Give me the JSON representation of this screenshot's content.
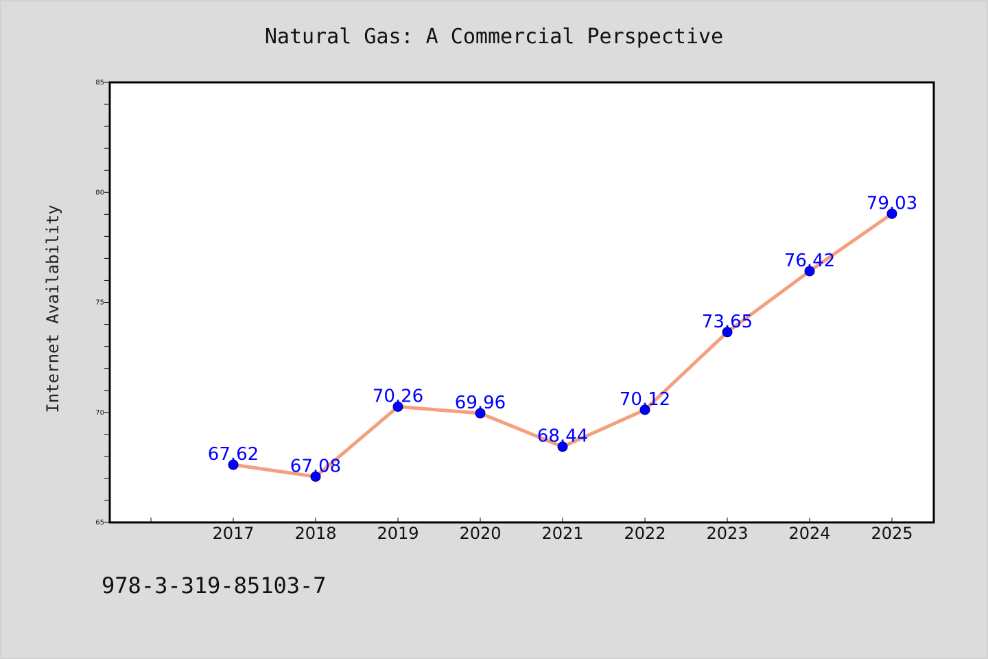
{
  "caption": "978-3-319-85103-7",
  "chart_data": {
    "type": "line",
    "title": "Natural Gas: A Commercial Perspective",
    "xlabel": "",
    "ylabel": "Internet Availability",
    "categories": [
      "2017",
      "2018",
      "2019",
      "2020",
      "2021",
      "2022",
      "2023",
      "2024",
      "2025"
    ],
    "series": [
      {
        "values": [
          67.62,
          67.08,
          70.26,
          69.96,
          68.44,
          70.12,
          73.65,
          76.42,
          79.03
        ],
        "labels": [
          "67.62",
          "67.08",
          "70.26",
          "69.96",
          "68.44",
          "70.12",
          "73.65",
          "76.42",
          "79.03"
        ]
      }
    ],
    "ylim": [
      65,
      85
    ],
    "yticks": [
      "65",
      "70",
      "75",
      "80",
      "85"
    ],
    "grid": false,
    "legend": "none",
    "colors": {
      "background": "#dcdcdc",
      "plot_background": "#ffffff",
      "line": "#f4a07f",
      "marker": "#0000ff",
      "data_label": "#0000ff"
    }
  }
}
